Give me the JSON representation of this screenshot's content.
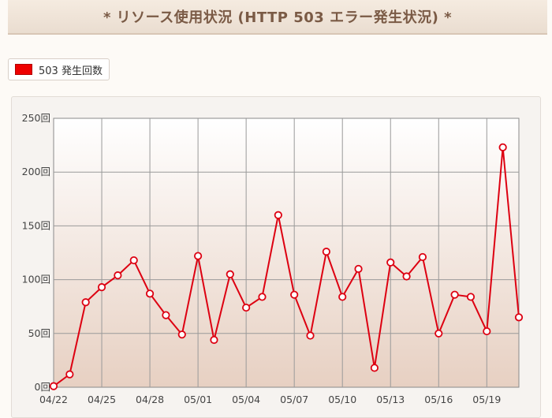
{
  "title": "* リソース使用状況 (HTTP 503 エラー発生状況) *",
  "colors": {
    "series": "#dd0011",
    "marker_fill": "#ffffff"
  },
  "chart_data": {
    "type": "line",
    "title": "* リソース使用状況 (HTTP 503 エラー発生状況) *",
    "legend_position": "top-left",
    "grid": true,
    "y_unit": "回",
    "ylim": [
      0,
      250
    ],
    "yticks": [
      0,
      50,
      100,
      150,
      200,
      250
    ],
    "ytick_labels": [
      "0回",
      "50回",
      "100回",
      "150回",
      "200回",
      "250回"
    ],
    "x": [
      "04/22",
      "04/23",
      "04/24",
      "04/25",
      "04/26",
      "04/27",
      "04/28",
      "04/29",
      "04/30",
      "05/01",
      "05/02",
      "05/03",
      "05/04",
      "05/05",
      "05/06",
      "05/07",
      "05/08",
      "05/09",
      "05/10",
      "05/11",
      "05/12",
      "05/13",
      "05/14",
      "05/15",
      "05/16",
      "05/17",
      "05/18",
      "05/19",
      "05/20",
      "05/21"
    ],
    "x_tick_labels": [
      "04/22",
      "04/25",
      "04/28",
      "05/01",
      "05/04",
      "05/07",
      "05/10",
      "05/13",
      "05/16",
      "05/19"
    ],
    "series": [
      {
        "name": "503 発生回数",
        "values": [
          1,
          12,
          79,
          93,
          104,
          118,
          87,
          67,
          49,
          122,
          44,
          105,
          74,
          84,
          160,
          86,
          48,
          126,
          84,
          110,
          18,
          116,
          103,
          121,
          50,
          86,
          84,
          52,
          223,
          65
        ]
      }
    ]
  }
}
